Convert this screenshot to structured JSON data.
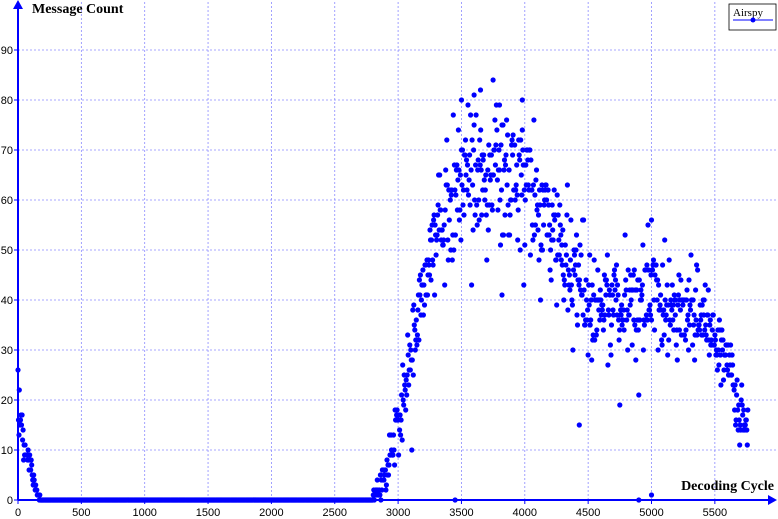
{
  "chart_data": {
    "type": "scatter",
    "xlabel": "Decoding Cycle",
    "ylabel": "Message Count",
    "xlim": [
      0,
      5850
    ],
    "ylim": [
      0,
      98
    ],
    "xticks": [
      0,
      500,
      1000,
      1500,
      2000,
      2500,
      3000,
      3500,
      4000,
      4500,
      5000,
      5500
    ],
    "yticks": [
      0,
      10,
      20,
      30,
      40,
      50,
      60,
      70,
      80,
      90
    ],
    "grid": true,
    "legend_position": "top-right",
    "colors": {
      "series": "#0000ff",
      "axis": "#0000ff",
      "grid": "#8a8aff"
    },
    "series": [
      {
        "name": "Airspy",
        "profile": [
          [
            0,
            14
          ],
          [
            20,
            18
          ],
          [
            50,
            11
          ],
          [
            90,
            8
          ],
          [
            130,
            4
          ],
          [
            170,
            0
          ],
          [
            2780,
            0
          ],
          [
            2850,
            2
          ],
          [
            2920,
            6
          ],
          [
            3000,
            16
          ],
          [
            3100,
            28
          ],
          [
            3200,
            42
          ],
          [
            3300,
            53
          ],
          [
            3400,
            60
          ],
          [
            3500,
            64
          ],
          [
            3600,
            66
          ],
          [
            3700,
            64
          ],
          [
            3800,
            65
          ],
          [
            3900,
            63
          ],
          [
            4000,
            62
          ],
          [
            4100,
            58
          ],
          [
            4200,
            55
          ],
          [
            4300,
            50
          ],
          [
            4400,
            46
          ],
          [
            4500,
            40
          ],
          [
            4600,
            39
          ],
          [
            4700,
            39
          ],
          [
            4800,
            39
          ],
          [
            4900,
            40
          ],
          [
            5000,
            41
          ],
          [
            5100,
            40
          ],
          [
            5200,
            39
          ],
          [
            5300,
            38
          ],
          [
            5400,
            36
          ],
          [
            5500,
            33
          ],
          [
            5600,
            27
          ],
          [
            5700,
            18
          ],
          [
            5760,
            13
          ]
        ],
        "spread": [
          [
            0,
            3
          ],
          [
            200,
            0
          ],
          [
            2780,
            0
          ],
          [
            3000,
            4
          ],
          [
            3300,
            6
          ],
          [
            3500,
            7
          ],
          [
            3800,
            8
          ],
          [
            4300,
            7
          ],
          [
            4600,
            5
          ],
          [
            5000,
            5
          ],
          [
            5400,
            4
          ],
          [
            5700,
            3
          ],
          [
            5760,
            2
          ]
        ],
        "outliers": [
          [
            10,
            22
          ],
          [
            3500,
            80
          ],
          [
            3600,
            81
          ],
          [
            3650,
            82
          ],
          [
            3750,
            84
          ],
          [
            3800,
            79
          ],
          [
            3980,
            80
          ],
          [
            3820,
            41
          ],
          [
            4430,
            15
          ],
          [
            4750,
            19
          ],
          [
            4900,
            21
          ],
          [
            5000,
            56
          ],
          [
            3450,
            0
          ],
          [
            4900,
            0
          ],
          [
            5000,
            1
          ]
        ]
      }
    ]
  }
}
